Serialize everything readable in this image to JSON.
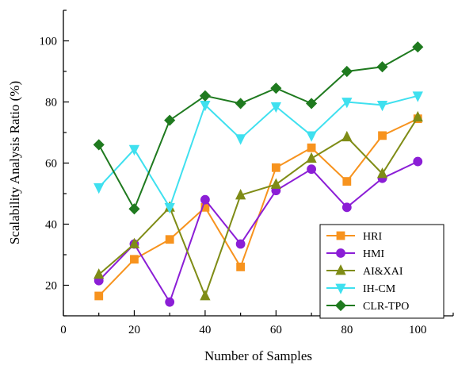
{
  "chart_data": {
    "type": "line",
    "xlabel": "Number of Samples",
    "ylabel": "Scalability Analysis Ratio (%)",
    "xlim": [
      0,
      110
    ],
    "ylim": [
      10,
      110
    ],
    "x_ticks": [
      0,
      20,
      40,
      60,
      80,
      100
    ],
    "y_ticks": [
      20,
      40,
      60,
      80,
      100
    ],
    "grid": false,
    "legend_position": "bottom-right",
    "x": [
      10,
      20,
      30,
      40,
      50,
      60,
      70,
      80,
      90,
      100
    ],
    "series": [
      {
        "name": "HRI",
        "color": "#f7931e",
        "marker": "square",
        "values": [
          16.5,
          28.5,
          35,
          45.5,
          26,
          58.5,
          65,
          54,
          69,
          74.5
        ]
      },
      {
        "name": "HMI",
        "color": "#8b1ed6",
        "marker": "circle",
        "values": [
          21.5,
          33.5,
          14.5,
          48,
          33.5,
          51,
          58,
          45.5,
          55,
          60.5
        ]
      },
      {
        "name": "AI&XAI",
        "color": "#7f8c16",
        "marker": "triangle-up",
        "values": [
          23.5,
          33.5,
          45.5,
          16.5,
          49.5,
          53,
          61.5,
          68.5,
          56.5,
          75
        ]
      },
      {
        "name": "IH-CM",
        "color": "#3fe0ef",
        "marker": "triangle-down",
        "values": [
          52,
          64.5,
          45.5,
          79,
          68,
          78.5,
          69,
          80,
          79,
          82
        ]
      },
      {
        "name": "CLR-TPO",
        "color": "#1f7a1f",
        "marker": "diamond",
        "values": [
          66,
          45,
          74,
          82,
          79.5,
          84.5,
          79.5,
          90,
          91.5,
          98
        ]
      }
    ]
  }
}
